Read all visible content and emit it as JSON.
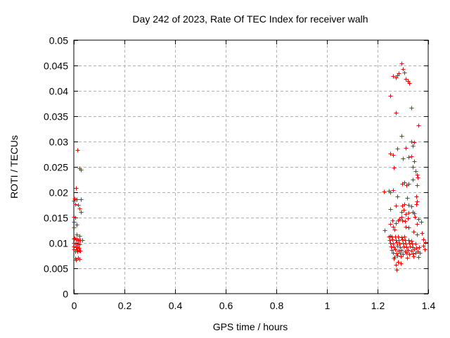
{
  "chart_data": {
    "type": "scatter",
    "title": "Day 242 of 2023, Rate Of TEC Index for receiver walh",
    "xlabel": "GPS time / hours",
    "ylabel": "ROTI / TECUs",
    "xlim": [
      0,
      1.4
    ],
    "ylim": [
      0,
      0.05
    ],
    "xticks": [
      0,
      0.2,
      0.4,
      0.6,
      0.8,
      1,
      1.2,
      1.4
    ],
    "xtick_labels": [
      "0",
      "0.2",
      "0.4",
      "0.6",
      "0.8",
      "1",
      "1.2",
      "1.4"
    ],
    "yticks": [
      0,
      0.005,
      0.01,
      0.015,
      0.02,
      0.025,
      0.03,
      0.035,
      0.04,
      0.045,
      0.05
    ],
    "ytick_labels": [
      "0",
      "0.005",
      "0.01",
      "0.015",
      "0.02",
      "0.025",
      "0.03",
      "0.035",
      "0.04",
      "0.045",
      "0.05"
    ],
    "grid": true,
    "legend": false,
    "marker": {
      "shape": "plus",
      "color": "#ff0000",
      "size": 7
    },
    "series": [
      {
        "name": "ROTI",
        "color": "#ff0000",
        "points": [
          [
            0.014,
            0.0283
          ],
          [
            0.022,
            0.0247
          ],
          [
            0.028,
            0.0244
          ],
          [
            0.0075,
            0.0209
          ],
          [
            0.003,
            0.0187
          ],
          [
            0.011,
            0.0186
          ],
          [
            0.028,
            0.0186
          ],
          [
            0.0,
            0.0183
          ],
          [
            0.006,
            0.0176
          ],
          [
            0.017,
            0.0175
          ],
          [
            0.022,
            0.0168
          ],
          [
            0.028,
            0.0161
          ],
          [
            0.0,
            0.0152
          ],
          [
            0.006,
            0.015
          ],
          [
            0.0,
            0.0142
          ],
          [
            0.011,
            0.0136
          ],
          [
            0.0,
            0.0131
          ],
          [
            0.011,
            0.0117
          ],
          [
            0.022,
            0.0114
          ],
          [
            0.003,
            0.011
          ],
          [
            0.0,
            0.0108
          ],
          [
            0.008,
            0.0107
          ],
          [
            0.014,
            0.0107
          ],
          [
            0.019,
            0.0106
          ],
          [
            0.025,
            0.0106
          ],
          [
            0.033,
            0.0105
          ],
          [
            0.0,
            0.01
          ],
          [
            0.006,
            0.0099
          ],
          [
            0.011,
            0.0099
          ],
          [
            0.017,
            0.0098
          ],
          [
            0.022,
            0.0097
          ],
          [
            0.0,
            0.0093
          ],
          [
            0.008,
            0.0092
          ],
          [
            0.014,
            0.0091
          ],
          [
            0.019,
            0.009
          ],
          [
            0.0,
            0.0087
          ],
          [
            0.011,
            0.0086
          ],
          [
            0.025,
            0.0085
          ],
          [
            0.022,
            0.0085
          ],
          [
            0.006,
            0.0084
          ],
          [
            0.014,
            0.0083
          ],
          [
            0.017,
            0.0071
          ],
          [
            0.006,
            0.0069
          ],
          [
            0.022,
            0.0068
          ],
          [
            0.008,
            0.0067
          ],
          [
            1.294,
            0.0454
          ],
          [
            1.3,
            0.0443
          ],
          [
            1.306,
            0.0436
          ],
          [
            1.283,
            0.0435
          ],
          [
            1.278,
            0.0431
          ],
          [
            1.261,
            0.0429
          ],
          [
            1.272,
            0.0426
          ],
          [
            1.311,
            0.0424
          ],
          [
            1.319,
            0.0419
          ],
          [
            1.325,
            0.0415
          ],
          [
            1.25,
            0.039
          ],
          [
            1.333,
            0.0367
          ],
          [
            1.272,
            0.0357
          ],
          [
            1.361,
            0.0332
          ],
          [
            1.294,
            0.0311
          ],
          [
            1.333,
            0.03
          ],
          [
            1.344,
            0.0299
          ],
          [
            1.339,
            0.0292
          ],
          [
            1.311,
            0.0288
          ],
          [
            1.278,
            0.0286
          ],
          [
            1.25,
            0.0276
          ],
          [
            1.261,
            0.0274
          ],
          [
            1.333,
            0.0271
          ],
          [
            1.322,
            0.0269
          ],
          [
            1.3,
            0.0267
          ],
          [
            1.344,
            0.0261
          ],
          [
            1.339,
            0.025
          ],
          [
            1.264,
            0.0249
          ],
          [
            1.35,
            0.0242
          ],
          [
            1.356,
            0.0235
          ],
          [
            1.358,
            0.0229
          ],
          [
            1.339,
            0.0225
          ],
          [
            1.306,
            0.0219
          ],
          [
            1.322,
            0.0217
          ],
          [
            1.297,
            0.0217
          ],
          [
            1.314,
            0.0214
          ],
          [
            1.356,
            0.0214
          ],
          [
            1.244,
            0.0203
          ],
          [
            1.225,
            0.0201
          ],
          [
            1.25,
            0.02
          ],
          [
            1.261,
            0.0204
          ],
          [
            1.278,
            0.0192
          ],
          [
            1.353,
            0.0192
          ],
          [
            1.317,
            0.0189
          ],
          [
            1.356,
            0.0182
          ],
          [
            1.353,
            0.0176
          ],
          [
            1.306,
            0.0176
          ],
          [
            1.322,
            0.0175
          ],
          [
            1.272,
            0.0174
          ],
          [
            1.297,
            0.0174
          ],
          [
            1.333,
            0.0172
          ],
          [
            1.25,
            0.0167
          ],
          [
            1.303,
            0.0165
          ],
          [
            1.294,
            0.0161
          ],
          [
            1.339,
            0.0161
          ],
          [
            1.322,
            0.016
          ],
          [
            1.344,
            0.0158
          ],
          [
            1.311,
            0.0157
          ],
          [
            1.347,
            0.0151
          ],
          [
            1.294,
            0.0151
          ],
          [
            1.319,
            0.0149
          ],
          [
            1.286,
            0.0147
          ],
          [
            1.361,
            0.0147
          ],
          [
            1.258,
            0.0144
          ],
          [
            1.281,
            0.0145
          ],
          [
            1.297,
            0.0144
          ],
          [
            1.308,
            0.0143
          ],
          [
            1.372,
            0.0142
          ],
          [
            1.272,
            0.0139
          ],
          [
            1.25,
            0.0137
          ],
          [
            1.356,
            0.0137
          ],
          [
            1.261,
            0.0132
          ],
          [
            1.311,
            0.0132
          ],
          [
            1.322,
            0.013
          ],
          [
            1.228,
            0.0125
          ],
          [
            1.267,
            0.0126
          ],
          [
            1.342,
            0.0122
          ],
          [
            1.356,
            0.0117
          ],
          [
            1.375,
            0.0119
          ],
          [
            1.244,
            0.0113
          ],
          [
            1.256,
            0.0112
          ],
          [
            1.269,
            0.0113
          ],
          [
            1.281,
            0.0112
          ],
          [
            1.294,
            0.0111
          ],
          [
            1.306,
            0.0113
          ],
          [
            1.25,
            0.0114
          ],
          [
            1.247,
            0.0106
          ],
          [
            1.258,
            0.0107
          ],
          [
            1.272,
            0.0105
          ],
          [
            1.283,
            0.0106
          ],
          [
            1.297,
            0.0107
          ],
          [
            1.308,
            0.0105
          ],
          [
            1.322,
            0.0106
          ],
          [
            1.333,
            0.0104
          ],
          [
            1.381,
            0.0107
          ],
          [
            1.25,
            0.01
          ],
          [
            1.261,
            0.0099
          ],
          [
            1.275,
            0.0101
          ],
          [
            1.286,
            0.0099
          ],
          [
            1.3,
            0.01
          ],
          [
            1.311,
            0.0098
          ],
          [
            1.325,
            0.01
          ],
          [
            1.336,
            0.0099
          ],
          [
            1.35,
            0.0098
          ],
          [
            1.389,
            0.0101
          ],
          [
            1.253,
            0.0093
          ],
          [
            1.264,
            0.0092
          ],
          [
            1.278,
            0.0094
          ],
          [
            1.289,
            0.0092
          ],
          [
            1.303,
            0.0093
          ],
          [
            1.314,
            0.0091
          ],
          [
            1.328,
            0.0093
          ],
          [
            1.339,
            0.0092
          ],
          [
            1.353,
            0.009
          ],
          [
            1.364,
            0.0092
          ],
          [
            1.381,
            0.0094
          ],
          [
            1.256,
            0.0086
          ],
          [
            1.269,
            0.0087
          ],
          [
            1.283,
            0.0085
          ],
          [
            1.294,
            0.0086
          ],
          [
            1.308,
            0.0084
          ],
          [
            1.319,
            0.0086
          ],
          [
            1.333,
            0.0085
          ],
          [
            1.344,
            0.0087
          ],
          [
            1.358,
            0.0084
          ],
          [
            1.386,
            0.0088
          ],
          [
            1.261,
            0.008
          ],
          [
            1.275,
            0.0079
          ],
          [
            1.289,
            0.0081
          ],
          [
            1.3,
            0.0078
          ],
          [
            1.314,
            0.008
          ],
          [
            1.325,
            0.0078
          ],
          [
            1.339,
            0.0079
          ],
          [
            1.35,
            0.0081
          ],
          [
            1.367,
            0.008
          ],
          [
            1.267,
            0.0072
          ],
          [
            1.278,
            0.0075
          ],
          [
            1.292,
            0.0073
          ],
          [
            1.317,
            0.0071
          ],
          [
            1.342,
            0.0073
          ],
          [
            1.361,
            0.0072
          ],
          [
            1.264,
            0.007
          ],
          [
            1.281,
            0.0062
          ],
          [
            1.292,
            0.006
          ],
          [
            1.272,
            0.0057
          ],
          [
            1.275,
            0.0047
          ]
        ]
      }
    ]
  },
  "colors": {
    "background": "#ffffff",
    "border": "#000000",
    "grid": "#b3b3b3",
    "marker": "#ff0000",
    "text": "#000000"
  }
}
